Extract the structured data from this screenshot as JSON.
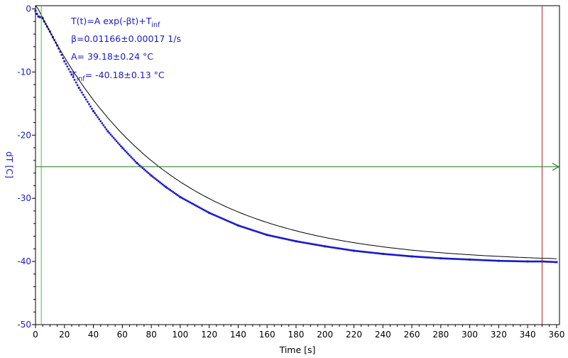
{
  "chart_data": {
    "type": "scatter",
    "xlabel": "Time [s]",
    "ylabel": "dT [C]",
    "xlim": [
      0,
      362
    ],
    "ylim": [
      -50,
      0.5
    ],
    "x_ticks": [
      0,
      20,
      40,
      60,
      80,
      100,
      120,
      140,
      160,
      180,
      200,
      220,
      240,
      260,
      280,
      300,
      320,
      340,
      360
    ],
    "y_ticks": [
      0,
      -10,
      -20,
      -30,
      -40,
      -50
    ],
    "grid": false,
    "fit": {
      "formula": "T(t)=A exp(-βt)+T",
      "formula_sub": "inf",
      "beta_text": "β=0.01166±0.00017 1/s",
      "A_text": "A= 39.18±0.24 °C",
      "Tinf_prefix": "T",
      "Tinf_sub": "inf",
      "Tinf_rest": "= -40.18±0.13 °C",
      "beta": 0.01166,
      "A": 39.18,
      "T_inf": -40.18,
      "t0": 4
    },
    "markers": {
      "start_x": 4,
      "end_x": 350,
      "level_y": -25
    },
    "series": [
      {
        "color": "#1a1ad0",
        "x": [
          0,
          1,
          2,
          3,
          4,
          5,
          6,
          8,
          10,
          12,
          15,
          20,
          25,
          30,
          40,
          50,
          60,
          70,
          80,
          90,
          100,
          120,
          140,
          160,
          180,
          200,
          220,
          240,
          260,
          280,
          300,
          320,
          340,
          350,
          360
        ],
        "y": [
          -0.3,
          -0.8,
          -1.2,
          -1.3,
          -1.3,
          -1.5,
          -2.0,
          -2.8,
          -3.6,
          -4.5,
          -5.8,
          -8.3,
          -10.4,
          -12.5,
          -16.2,
          -19.4,
          -22.0,
          -24.4,
          -26.4,
          -28.2,
          -29.8,
          -32.3,
          -34.3,
          -35.8,
          -36.8,
          -37.6,
          -38.3,
          -38.8,
          -39.2,
          -39.5,
          -39.7,
          -39.9,
          -40.0,
          -40.0,
          -40.1
        ]
      }
    ]
  },
  "colors": {
    "data": "#1a1ad0",
    "fit": "#000000",
    "start_marker": "#33cc33",
    "end_marker": "#b22222",
    "level_marker": "#1e7d1e",
    "axis_label": "#1a1ad0"
  }
}
